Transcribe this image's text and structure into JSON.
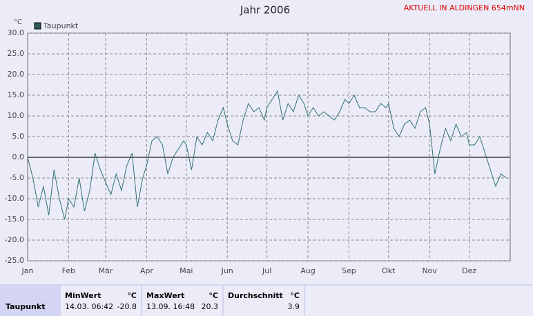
{
  "chart_data": {
    "type": "line",
    "title": "Jahr 2006",
    "notice": "AKTUELL IN ALDINGEN 654mNN",
    "y_unit": "°C",
    "x": [
      0,
      4,
      8,
      12,
      16,
      20,
      24,
      28,
      31,
      35,
      39,
      43,
      47,
      51,
      55,
      59,
      63,
      67,
      71,
      75,
      79,
      83,
      87,
      90,
      94,
      98,
      102,
      106,
      110,
      114,
      118,
      120,
      124,
      128,
      132,
      136,
      140,
      144,
      148,
      151,
      155,
      159,
      163,
      167,
      171,
      175,
      179,
      181,
      185,
      189,
      193,
      197,
      201,
      205,
      209,
      212,
      216,
      220,
      224,
      228,
      232,
      236,
      240,
      243,
      247,
      251,
      255,
      259,
      263,
      267,
      271,
      273,
      277,
      281,
      285,
      289,
      293,
      297,
      301,
      304,
      308,
      312,
      316,
      320,
      324,
      328,
      332,
      334,
      338,
      342,
      346,
      350,
      354,
      358,
      362
    ],
    "series": [
      {
        "name": "Taupunkt",
        "color": "#2e7070",
        "values": [
          0,
          -5,
          -12,
          -7,
          -14,
          -3,
          -10,
          -15,
          -10,
          -12,
          -5,
          -13,
          -8,
          1,
          -3,
          -6,
          -9,
          -4,
          -8,
          -2,
          1,
          -12,
          -5,
          -2,
          4,
          5,
          3,
          -4,
          0,
          2,
          4,
          3,
          -3,
          5,
          3,
          6,
          4,
          9,
          12,
          8,
          4,
          3,
          9,
          13,
          11,
          12,
          9,
          12,
          14,
          16,
          9,
          13,
          11,
          15,
          13,
          10,
          12,
          10,
          11,
          10,
          9,
          11,
          14,
          13,
          15,
          12,
          12,
          11,
          11,
          13,
          12,
          13,
          7,
          5,
          8,
          9,
          7,
          11,
          12,
          8,
          -4,
          2,
          7,
          4,
          8,
          5,
          6,
          3,
          3,
          5,
          1,
          -3,
          -7,
          -4,
          -5
        ]
      }
    ],
    "xlim": [
      0,
      365
    ],
    "xticks": [
      {
        "value": 0,
        "label": "Jan"
      },
      {
        "value": 31,
        "label": "Feb"
      },
      {
        "value": 59,
        "label": "Mär"
      },
      {
        "value": 90,
        "label": "Apr"
      },
      {
        "value": 120,
        "label": "Mai"
      },
      {
        "value": 151,
        "label": "Jun"
      },
      {
        "value": 181,
        "label": "Jul"
      },
      {
        "value": 212,
        "label": "Aug"
      },
      {
        "value": 243,
        "label": "Sep"
      },
      {
        "value": 273,
        "label": "Okt"
      },
      {
        "value": 304,
        "label": "Nov"
      },
      {
        "value": 334,
        "label": "Dez"
      }
    ],
    "ylim": [
      -25,
      30
    ],
    "yticks": [
      {
        "value": 30,
        "label": "30.0"
      },
      {
        "value": 25,
        "label": "25.0"
      },
      {
        "value": 20,
        "label": "20.0"
      },
      {
        "value": 15,
        "label": "15.0"
      },
      {
        "value": 10,
        "label": "10.0"
      },
      {
        "value": 5,
        "label": "5.0"
      },
      {
        "value": 0,
        "label": "0.0"
      },
      {
        "value": -5,
        "label": "-5.0"
      },
      {
        "value": -10,
        "label": "-10.0"
      },
      {
        "value": -15,
        "label": "-15.0"
      },
      {
        "value": -20,
        "label": "-20.0"
      },
      {
        "value": -25,
        "label": "-25.0"
      }
    ],
    "grid": true
  },
  "table": {
    "row_label": "Taupunkt",
    "columns": [
      {
        "heading": "MinWert",
        "unit": "°C",
        "time": "14.03.  06:42",
        "value": "-20.8"
      },
      {
        "heading": "MaxWert",
        "unit": "°C",
        "time": "13.09.  16:48",
        "value": "20.3"
      },
      {
        "heading": "Durchschnitt",
        "unit": "°C",
        "time": "",
        "value": "3.9"
      }
    ]
  }
}
